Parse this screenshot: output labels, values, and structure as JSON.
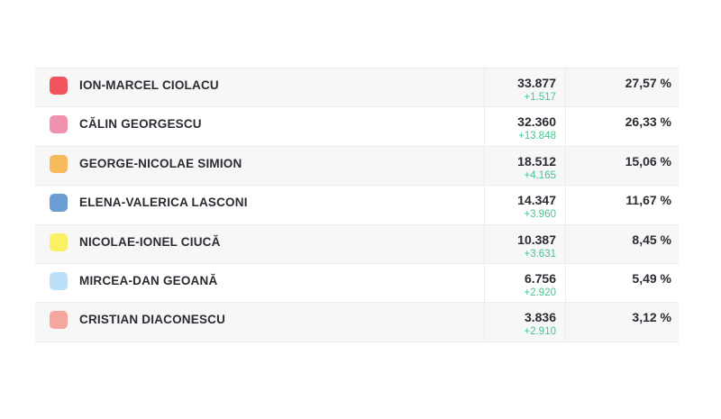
{
  "page": {
    "background_color": "#ffffff",
    "text_color": "#2b2b33",
    "increment_color": "#3ec98e",
    "row_alt_background": "#f7f7f8",
    "border_color": "#ececee"
  },
  "table": {
    "columns": [
      "candidate",
      "votes",
      "percentage"
    ],
    "rows": [
      {
        "name": "ION-MARCEL CIOLACU",
        "color": "#f2545e",
        "votes": "33.877",
        "increment": "+1.517",
        "percent": "27,57 %"
      },
      {
        "name": "CĂLIN GEORGESCU",
        "color": "#f091ad",
        "votes": "32.360",
        "increment": "+13.848",
        "percent": "26,33 %"
      },
      {
        "name": "GEORGE-NICOLAE SIMION",
        "color": "#f6ba5d",
        "votes": "18.512",
        "increment": "+4.165",
        "percent": "15,06 %"
      },
      {
        "name": "ELENA-VALERICA LASCONI",
        "color": "#6c9ed3",
        "votes": "14.347",
        "increment": "+3.960",
        "percent": "11,67 %"
      },
      {
        "name": "NICOLAE-IONEL CIUCĂ",
        "color": "#faf066",
        "votes": "10.387",
        "increment": "+3.631",
        "percent": "8,45 %"
      },
      {
        "name": "MIRCEA-DAN GEOANĂ",
        "color": "#bde0f9",
        "votes": "6.756",
        "increment": "+2.920",
        "percent": "5,49 %"
      },
      {
        "name": "CRISTIAN DIACONESCU",
        "color": "#f6a79d",
        "votes": "3.836",
        "increment": "+2.910",
        "percent": "3,12 %"
      }
    ]
  }
}
